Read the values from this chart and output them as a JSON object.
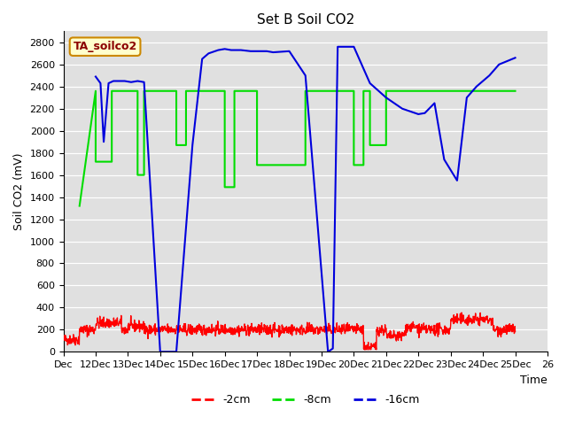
{
  "title": "Set B Soil CO2",
  "ylabel": "Soil CO2 (mV)",
  "xlabel": "Time",
  "annotation": "TA_soilco2",
  "ylim": [
    0,
    2900
  ],
  "yticks": [
    0,
    200,
    400,
    600,
    800,
    1000,
    1200,
    1400,
    1600,
    1800,
    2000,
    2200,
    2400,
    2600,
    2800
  ],
  "xtick_labels": [
    "Dec",
    "12Dec",
    "13Dec",
    "14Dec",
    "15Dec",
    "16Dec",
    "17Dec",
    "18Dec",
    "19Dec",
    "20Dec",
    "21Dec",
    "22Dec",
    "23Dec",
    "24Dec",
    "25Dec",
    "26"
  ],
  "bg_color": "#e0e0e0",
  "line_colors": {
    "2cm": "#ff0000",
    "8cm": "#00dd00",
    "16cm": "#0000dd"
  },
  "legend_labels": [
    "-2cm",
    "-8cm",
    "-16cm"
  ],
  "green_x": [
    0.5,
    1.0,
    1.0,
    1.5,
    1.5,
    2.3,
    2.3,
    2.5,
    2.5,
    3.5,
    3.5,
    3.8,
    3.8,
    5.0,
    5.0,
    5.3,
    5.3,
    6.0,
    6.0,
    7.5,
    7.5,
    9.0,
    9.0,
    9.3,
    9.3,
    9.5,
    9.5,
    10.0,
    10.0,
    11.0,
    11.0,
    11.3,
    11.3,
    12.0,
    12.0,
    13.0,
    13.0,
    14.0
  ],
  "green_y": [
    1320,
    2360,
    1720,
    1720,
    2360,
    2360,
    1600,
    1600,
    2360,
    2360,
    1870,
    1870,
    2360,
    2360,
    1490,
    1490,
    2360,
    2360,
    1690,
    1690,
    2360,
    2360,
    1690,
    1690,
    2360,
    2360,
    1870,
    1870,
    2360,
    2360,
    2360,
    2360,
    2360,
    2360,
    2360,
    2360,
    2360,
    2360
  ],
  "blue_x": [
    1.0,
    1.15,
    1.25,
    1.4,
    1.55,
    1.65,
    1.9,
    2.1,
    2.3,
    2.5,
    3.0,
    3.5,
    4.0,
    4.3,
    4.5,
    4.8,
    5.0,
    5.2,
    5.5,
    5.8,
    6.0,
    6.3,
    6.5,
    7.0,
    7.5,
    8.2,
    8.35,
    8.5,
    9.0,
    9.5,
    10.0,
    10.5,
    11.0,
    11.2,
    11.5,
    11.8,
    12.2,
    12.5,
    12.8,
    13.2,
    13.5,
    14.0
  ],
  "blue_y": [
    2490,
    2430,
    1900,
    2430,
    2450,
    2450,
    2450,
    2440,
    2450,
    2440,
    0,
    0,
    1870,
    2650,
    2700,
    2730,
    2740,
    2730,
    2730,
    2720,
    2720,
    2720,
    2710,
    2720,
    2500,
    0,
    30,
    2760,
    2760,
    2430,
    2300,
    2200,
    2150,
    2160,
    2250,
    1740,
    1550,
    2300,
    2400,
    2500,
    2600,
    2660
  ]
}
